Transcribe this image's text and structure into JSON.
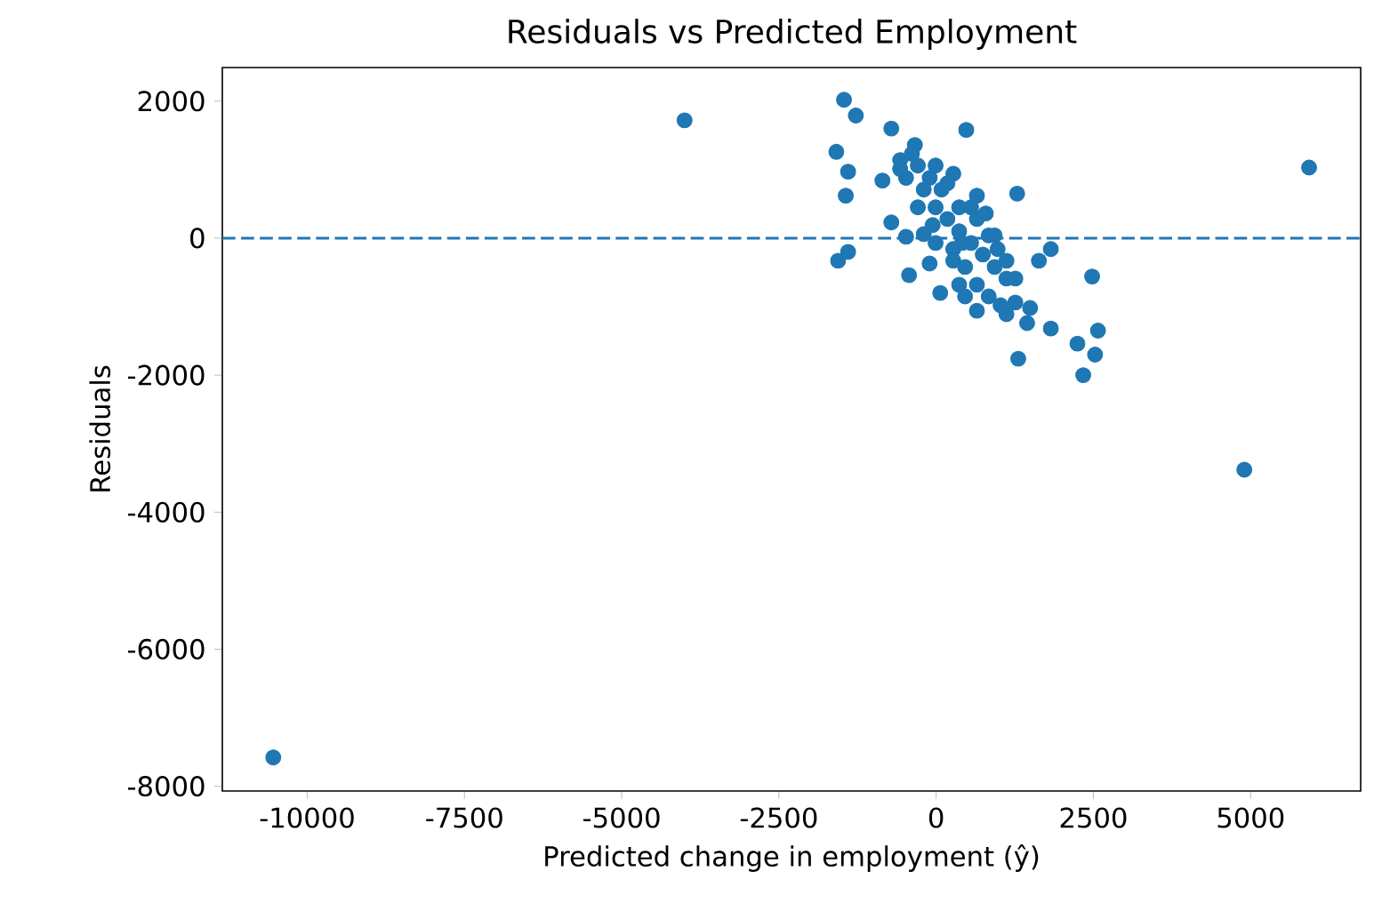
{
  "chart_data": {
    "type": "scatter",
    "title": "Residuals vs Predicted Employment",
    "xlabel": "Predicted change in employment (ŷ)",
    "ylabel": "Residuals",
    "xlim": [
      -11350,
      6750
    ],
    "ylim": [
      -8070,
      2490
    ],
    "xticks": [
      -10000,
      -7500,
      -5000,
      -2500,
      0,
      2500,
      5000
    ],
    "yticks": [
      -8000,
      -6000,
      -4000,
      -2000,
      0,
      2000
    ],
    "grid": false,
    "ref_lines": [
      {
        "axis": "y",
        "value": 0,
        "color": "#1f77b4",
        "line_style": "dashed"
      }
    ],
    "series": [
      {
        "color": "#1f77b4",
        "x": [
          -10540,
          -4000,
          5930,
          4900,
          -1465,
          -1277,
          -713,
          479,
          -1587,
          -1400,
          -1437,
          -854,
          -338,
          -572,
          273,
          1288,
          -713,
          -479,
          -1559,
          -1400,
          -431,
          -104,
          65,
          648,
          1118,
          1446,
          1823,
          1305,
          2480,
          1634,
          1823,
          2246,
          2573,
          2527,
          2339,
          648,
          -197,
          -9,
          179,
          366,
          555,
          742,
          930,
          1118,
          85,
          366,
          648,
          836,
          -291,
          -56,
          272,
          460,
          648,
          836,
          1024,
          1259,
          -103,
          -291,
          -479,
          179,
          555,
          930,
          366,
          460,
          1494,
          272,
          -197,
          -9,
          -385,
          -573,
          789,
          977,
          1118,
          1259,
          -9,
          413
        ],
        "values": [
          -7580,
          1720,
          1030,
          -3380,
          2020,
          1790,
          1600,
          1580,
          1260,
          970,
          620,
          840,
          1360,
          1140,
          940,
          650,
          230,
          20,
          -330,
          -200,
          -540,
          -370,
          -800,
          -1060,
          -1110,
          -1240,
          -1320,
          -1760,
          -560,
          -330,
          -160,
          -1540,
          -1350,
          -1700,
          -2000,
          620,
          710,
          450,
          280,
          100,
          -70,
          -240,
          -420,
          -590,
          710,
          450,
          280,
          40,
          450,
          190,
          -160,
          -420,
          -680,
          -850,
          -980,
          -940,
          880,
          1060,
          880,
          800,
          450,
          40,
          -680,
          -850,
          -1020,
          -330,
          60,
          1060,
          1230,
          1010,
          360,
          -160,
          -330,
          -590,
          -70,
          -70
        ]
      }
    ]
  }
}
